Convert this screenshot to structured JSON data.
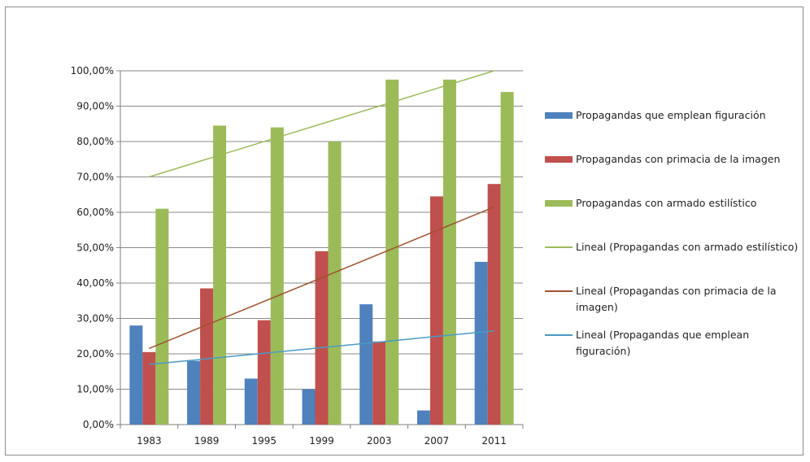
{
  "chart_data": {
    "type": "bar",
    "categories": [
      "1983",
      "1989",
      "1995",
      "1999",
      "2003",
      "2007",
      "2011"
    ],
    "series": [
      {
        "name": "Propagandas que emplean figuración",
        "color": "#4f81bd",
        "values": [
          28.0,
          18.0,
          13.0,
          10.0,
          34.0,
          4.0,
          46.0
        ]
      },
      {
        "name": "Propagandas con primacia de la imagen",
        "color": "#c0504d",
        "values": [
          20.5,
          38.5,
          29.5,
          49.0,
          23.5,
          64.5,
          68.0
        ]
      },
      {
        "name": "Propagandas con armado estilístico",
        "color": "#9bbb59",
        "values": [
          61.0,
          84.5,
          84.0,
          80.0,
          97.5,
          97.5,
          94.0
        ]
      }
    ],
    "trendlines": [
      {
        "name": "Lineal (Propagandas con armado estilístico)",
        "color": "#9bbb59",
        "start": 70.0,
        "end": 100.0
      },
      {
        "name": "Lineal (Propagandas con primacia de la imagen)",
        "color": "#a0522d",
        "start": 21.5,
        "end": 61.5
      },
      {
        "name": "Lineal (Propagandas que emplean figuración)",
        "color": "#4a9bc4",
        "start": 17.0,
        "end": 26.5
      }
    ],
    "yticks": [
      "0,00%",
      "10,00%",
      "20,00%",
      "30,00%",
      "40,00%",
      "50,00%",
      "60,00%",
      "70,00%",
      "80,00%",
      "90,00%",
      "100,00%"
    ],
    "ylim": [
      0,
      100
    ],
    "grid": true,
    "legend_position": "right",
    "title": "",
    "xlabel": "",
    "ylabel": ""
  },
  "legend": [
    {
      "label": "Propagandas que emplean figuración",
      "kind": "bar",
      "color": "#4f81bd"
    },
    {
      "label": "Propagandas con primacia de la imagen",
      "kind": "bar",
      "color": "#c0504d"
    },
    {
      "label": "Propagandas con armado estilístico",
      "kind": "bar",
      "color": "#9bbb59"
    },
    {
      "label": "Lineal (Propagandas con armado estilístico)",
      "kind": "line",
      "color": "#9bbb59"
    },
    {
      "label": "Lineal (Propagandas con primacia de la imagen)",
      "kind": "line",
      "color": "#a0522d"
    },
    {
      "label": "Lineal (Propagandas que emplean figuración)",
      "kind": "line",
      "color": "#4a9bc4"
    }
  ]
}
